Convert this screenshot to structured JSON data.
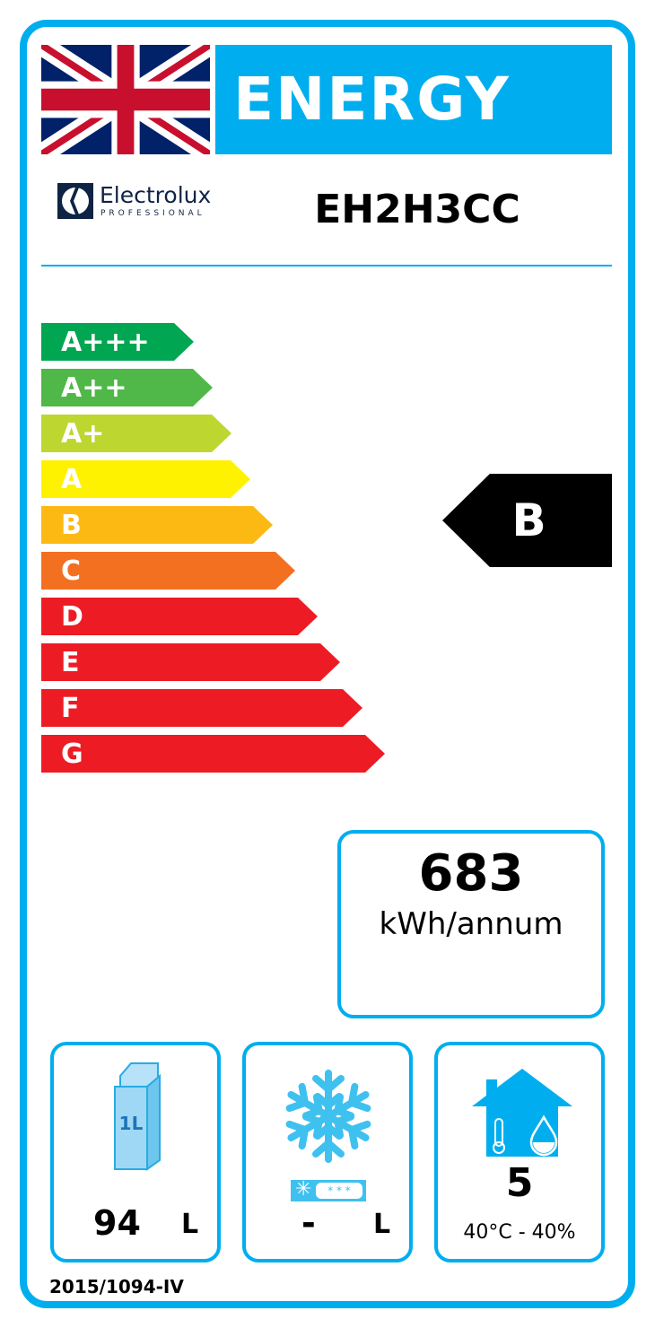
{
  "header": {
    "title": "ENERGY",
    "brand": "Electrolux",
    "brand_sub": "PROFESSIONAL",
    "model": "EH2H3CC"
  },
  "scale": [
    {
      "label": "A+++",
      "color": "#00a651"
    },
    {
      "label": "A++",
      "color": "#50b848"
    },
    {
      "label": "A+",
      "color": "#bed630"
    },
    {
      "label": "A",
      "color": "#fff200"
    },
    {
      "label": "B",
      "color": "#fdb913"
    },
    {
      "label": "C",
      "color": "#f37021"
    },
    {
      "label": "D",
      "color": "#ed1c24"
    },
    {
      "label": "E",
      "color": "#ed1c24"
    },
    {
      "label": "F",
      "color": "#ed1c24"
    },
    {
      "label": "G",
      "color": "#ed1c24"
    }
  ],
  "rating": "B",
  "consumption": {
    "value": "683",
    "unit": "kWh/annum"
  },
  "chilled": {
    "value": "94",
    "unit": "L",
    "icon_text": "1L"
  },
  "frozen": {
    "value": "-",
    "unit": "L"
  },
  "climate": {
    "class": "5",
    "conditions": "40°C - 40%"
  },
  "regulation": "2015/1094-IV",
  "colors": {
    "accent": "#00aeef"
  }
}
